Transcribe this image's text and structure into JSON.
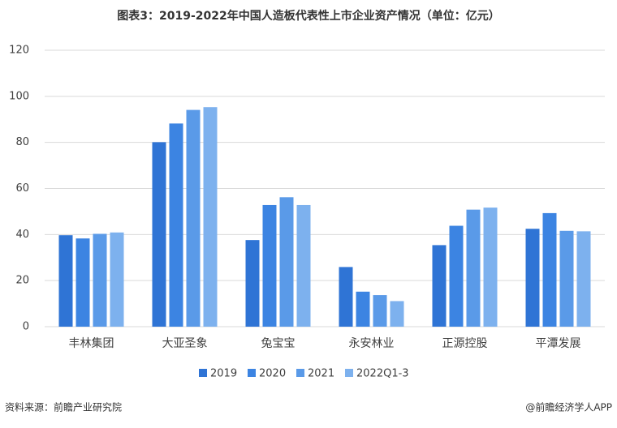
{
  "chart_data": {
    "type": "bar",
    "title": "图表3：2019-2022年中国人造板代表性上市企业资产情况（单位：亿元）",
    "categories": [
      "丰林集团",
      "大亚圣象",
      "兔宝宝",
      "永安林业",
      "正源控股",
      "平潭发展"
    ],
    "series": [
      {
        "name": "2019",
        "color": "#2f74d5",
        "values": [
          39.7,
          80.1,
          37.6,
          25.9,
          35.4,
          42.5
        ]
      },
      {
        "name": "2020",
        "color": "#3c84e2",
        "values": [
          38.3,
          88.2,
          52.8,
          15.2,
          43.8,
          49.3
        ]
      },
      {
        "name": "2021",
        "color": "#5a9ae8",
        "values": [
          40.3,
          94.1,
          56.2,
          13.7,
          50.8,
          41.6
        ]
      },
      {
        "name": "2022Q1-3",
        "color": "#7db1ee",
        "values": [
          40.9,
          95.3,
          52.8,
          11.1,
          51.7,
          41.4
        ]
      }
    ],
    "ylim": [
      0,
      120
    ],
    "yticks": [
      0,
      20,
      40,
      60,
      80,
      100,
      120
    ],
    "grid": true,
    "legend": "bottom"
  },
  "source": "资料来源：前瞻产业研究院",
  "credit": "@前瞻经济学人APP"
}
